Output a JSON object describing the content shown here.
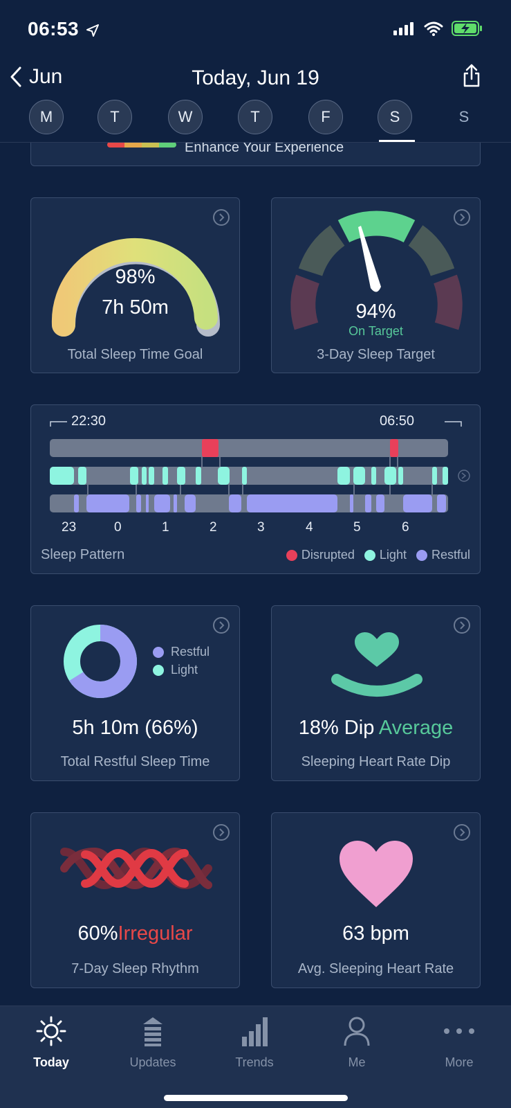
{
  "status": {
    "time": "06:53"
  },
  "nav": {
    "back_label": "Jun",
    "title": "Today, Jun 19"
  },
  "days": [
    {
      "label": "M"
    },
    {
      "label": "T"
    },
    {
      "label": "W"
    },
    {
      "label": "T"
    },
    {
      "label": "F"
    },
    {
      "label": "S"
    },
    {
      "label": "S"
    }
  ],
  "banner": {
    "text": "Enhance Your Experience"
  },
  "total_sleep_goal": {
    "percent": "98%",
    "duration": "7h 50m",
    "label": "Total Sleep Time Goal",
    "fill": 0.98
  },
  "sleep_target": {
    "percent": "94%",
    "status": "On Target",
    "label": "3-Day Sleep Target"
  },
  "sleep_pattern": {
    "start_time": "22:30",
    "end_time": "06:50",
    "hours": [
      "23",
      "0",
      "1",
      "2",
      "3",
      "4",
      "5",
      "6"
    ],
    "label": "Sleep Pattern",
    "legend": [
      {
        "name": "Disrupted",
        "color": "#e8405a"
      },
      {
        "name": "Light",
        "color": "#8ef4e0"
      },
      {
        "name": "Restful",
        "color": "#9a9cf2"
      }
    ]
  },
  "restful": {
    "value": "5h 10m (66%)",
    "label": "Total Restful Sleep Time",
    "legend": [
      "Restful",
      "Light"
    ],
    "restful_fraction": 0.66
  },
  "hr_dip": {
    "value": "18% Dip",
    "status": "Average",
    "label": "Sleeping Heart Rate Dip"
  },
  "rhythm": {
    "value": "60%",
    "status": "Irregular",
    "label": "7-Day Sleep Rhythm"
  },
  "avg_hr": {
    "value": "63 bpm",
    "label": "Avg. Sleeping Heart Rate"
  },
  "tabs": [
    {
      "label": "Today"
    },
    {
      "label": "Updates"
    },
    {
      "label": "Trends"
    },
    {
      "label": "Me"
    },
    {
      "label": "More"
    }
  ]
}
